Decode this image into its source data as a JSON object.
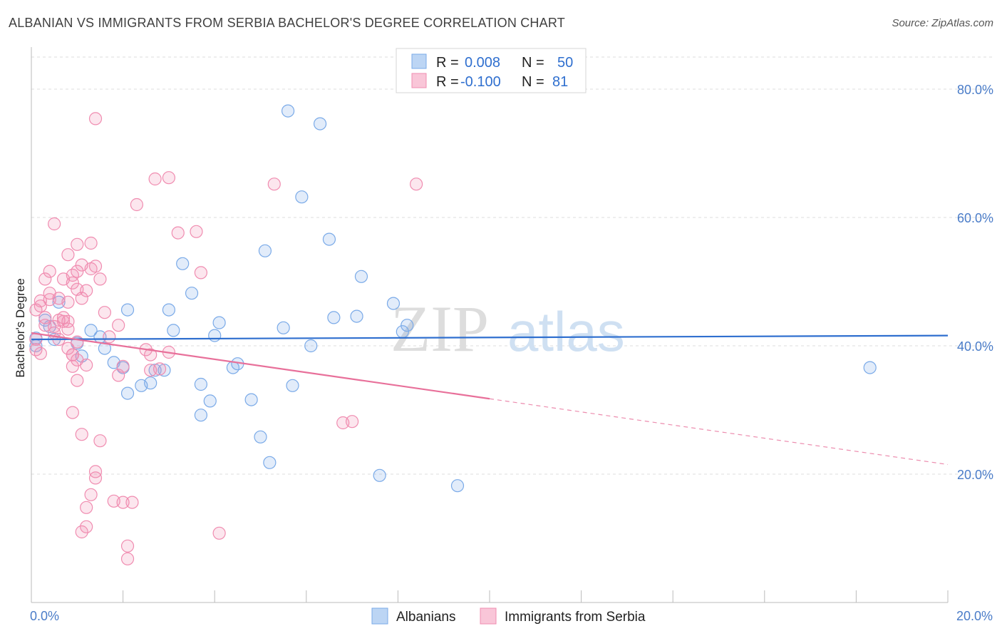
{
  "title": "ALBANIAN VS IMMIGRANTS FROM SERBIA BACHELOR'S DEGREE CORRELATION CHART",
  "source": "Source: ZipAtlas.com",
  "colors": {
    "albanians": "#7aaae8",
    "serbia": "#f08cb0",
    "albanians_line": "#2f6fcf",
    "serbia_line": "#e8709a",
    "tick": "#4a7cc8",
    "grid": "#dcdcdc"
  },
  "legend": {
    "rows": [
      {
        "r_label": "R =",
        "r_value": "0.008",
        "n_label": "N =",
        "n_value": "50"
      },
      {
        "r_label": "R =",
        "r_value": "-0.100",
        "n_label": "N =",
        "n_value": "81"
      }
    ]
  },
  "watermark": {
    "zip": "ZIP",
    "atlas": "atlas"
  },
  "chart_data": {
    "type": "scatter",
    "title": "ALBANIAN VS IMMIGRANTS FROM SERBIA BACHELOR'S DEGREE CORRELATION CHART",
    "xlabel": "",
    "ylabel": "Bachelor's Degree",
    "xlim": [
      0,
      20
    ],
    "ylim": [
      0,
      85
    ],
    "x_tick_labels": [
      "0.0%",
      "20.0%"
    ],
    "y_ticks": [
      20,
      40,
      60,
      80
    ],
    "y_tick_labels": [
      "20.0%",
      "40.0%",
      "60.0%",
      "80.0%"
    ],
    "grid": true,
    "legend_position": "top-center",
    "series": [
      {
        "name": "Albanians",
        "trend": {
          "x0": 0,
          "y0": 41.0,
          "x1": 20,
          "y1": 41.6,
          "dashed_from": null
        },
        "points": [
          [
            0.1,
            41.2
          ],
          [
            0.1,
            40.0
          ],
          [
            0.3,
            44.0
          ],
          [
            0.4,
            43.0
          ],
          [
            0.5,
            41.0
          ],
          [
            0.6,
            46.8
          ],
          [
            1.0,
            40.4
          ],
          [
            1.1,
            38.4
          ],
          [
            1.3,
            42.4
          ],
          [
            1.5,
            41.4
          ],
          [
            1.6,
            39.6
          ],
          [
            1.8,
            37.4
          ],
          [
            2.0,
            36.6
          ],
          [
            2.1,
            32.6
          ],
          [
            2.1,
            45.6
          ],
          [
            2.4,
            33.8
          ],
          [
            2.6,
            34.2
          ],
          [
            2.7,
            36.2
          ],
          [
            2.9,
            36.2
          ],
          [
            3.0,
            45.6
          ],
          [
            3.1,
            42.4
          ],
          [
            3.3,
            52.8
          ],
          [
            3.5,
            48.2
          ],
          [
            3.7,
            29.2
          ],
          [
            3.7,
            34.0
          ],
          [
            3.9,
            31.4
          ],
          [
            4.0,
            41.6
          ],
          [
            4.1,
            43.6
          ],
          [
            4.4,
            36.6
          ],
          [
            4.5,
            37.2
          ],
          [
            4.8,
            31.6
          ],
          [
            5.0,
            25.8
          ],
          [
            5.1,
            54.8
          ],
          [
            5.2,
            21.8
          ],
          [
            5.5,
            42.8
          ],
          [
            5.6,
            76.6
          ],
          [
            5.7,
            33.8
          ],
          [
            5.9,
            63.2
          ],
          [
            6.1,
            40.0
          ],
          [
            6.3,
            74.6
          ],
          [
            6.5,
            56.6
          ],
          [
            6.6,
            44.4
          ],
          [
            7.1,
            44.6
          ],
          [
            7.2,
            50.8
          ],
          [
            7.6,
            19.8
          ],
          [
            7.9,
            46.6
          ],
          [
            8.1,
            42.2
          ],
          [
            8.2,
            43.2
          ],
          [
            9.3,
            18.2
          ],
          [
            18.3,
            36.6
          ]
        ]
      },
      {
        "name": "Immigrants from Serbia",
        "trend": {
          "x0": 0,
          "y0": 42.0,
          "x1": 20,
          "y1": 21.5,
          "dashed_from": 10
        },
        "points": [
          [
            0.1,
            41.0
          ],
          [
            0.1,
            39.4
          ],
          [
            0.1,
            45.6
          ],
          [
            0.2,
            47.0
          ],
          [
            0.2,
            46.2
          ],
          [
            0.3,
            50.4
          ],
          [
            0.3,
            44.4
          ],
          [
            0.3,
            43.2
          ],
          [
            0.4,
            48.2
          ],
          [
            0.4,
            51.6
          ],
          [
            0.4,
            47.2
          ],
          [
            0.5,
            42.0
          ],
          [
            0.5,
            43.0
          ],
          [
            0.5,
            59.0
          ],
          [
            0.6,
            47.4
          ],
          [
            0.6,
            41.0
          ],
          [
            0.7,
            50.4
          ],
          [
            0.7,
            43.8
          ],
          [
            0.7,
            44.4
          ],
          [
            0.8,
            43.8
          ],
          [
            0.8,
            46.8
          ],
          [
            0.8,
            39.6
          ],
          [
            0.8,
            42.6
          ],
          [
            0.8,
            54.2
          ],
          [
            0.9,
            49.8
          ],
          [
            0.9,
            36.8
          ],
          [
            0.9,
            51.0
          ],
          [
            0.9,
            38.6
          ],
          [
            1.0,
            55.8
          ],
          [
            0.9,
            29.6
          ],
          [
            0.9,
            38.6
          ],
          [
            1.0,
            40.6
          ],
          [
            1.0,
            34.6
          ],
          [
            1.0,
            48.8
          ],
          [
            1.0,
            37.8
          ],
          [
            1.0,
            51.6
          ],
          [
            1.1,
            52.6
          ],
          [
            1.1,
            26.2
          ],
          [
            1.1,
            47.4
          ],
          [
            1.1,
            11.0
          ],
          [
            1.2,
            11.8
          ],
          [
            1.2,
            14.8
          ],
          [
            1.2,
            48.6
          ],
          [
            1.2,
            37.0
          ],
          [
            1.3,
            52.0
          ],
          [
            1.3,
            16.8
          ],
          [
            1.3,
            56.0
          ],
          [
            1.4,
            20.4
          ],
          [
            1.4,
            19.4
          ],
          [
            1.4,
            52.4
          ],
          [
            1.4,
            75.4
          ],
          [
            1.5,
            50.4
          ],
          [
            1.5,
            25.2
          ],
          [
            1.6,
            45.2
          ],
          [
            1.7,
            41.4
          ],
          [
            1.8,
            15.8
          ],
          [
            1.9,
            43.2
          ],
          [
            1.9,
            35.4
          ],
          [
            2.0,
            15.6
          ],
          [
            2.0,
            36.8
          ],
          [
            2.1,
            8.8
          ],
          [
            2.1,
            6.8
          ],
          [
            2.2,
            15.6
          ],
          [
            2.3,
            62.0
          ],
          [
            2.5,
            39.4
          ],
          [
            2.6,
            38.6
          ],
          [
            2.6,
            36.2
          ],
          [
            2.7,
            66.0
          ],
          [
            2.8,
            36.4
          ],
          [
            3.0,
            66.2
          ],
          [
            3.0,
            39.0
          ],
          [
            3.2,
            57.6
          ],
          [
            3.6,
            57.8
          ],
          [
            3.7,
            51.4
          ],
          [
            4.1,
            10.8
          ],
          [
            5.3,
            65.2
          ],
          [
            6.8,
            28.0
          ],
          [
            7.0,
            28.2
          ],
          [
            8.4,
            65.2
          ],
          [
            0.2,
            38.8
          ],
          [
            0.6,
            44.0
          ]
        ]
      }
    ]
  },
  "bottom_legend": [
    {
      "label": "Albanians"
    },
    {
      "label": "Immigrants from Serbia"
    }
  ]
}
